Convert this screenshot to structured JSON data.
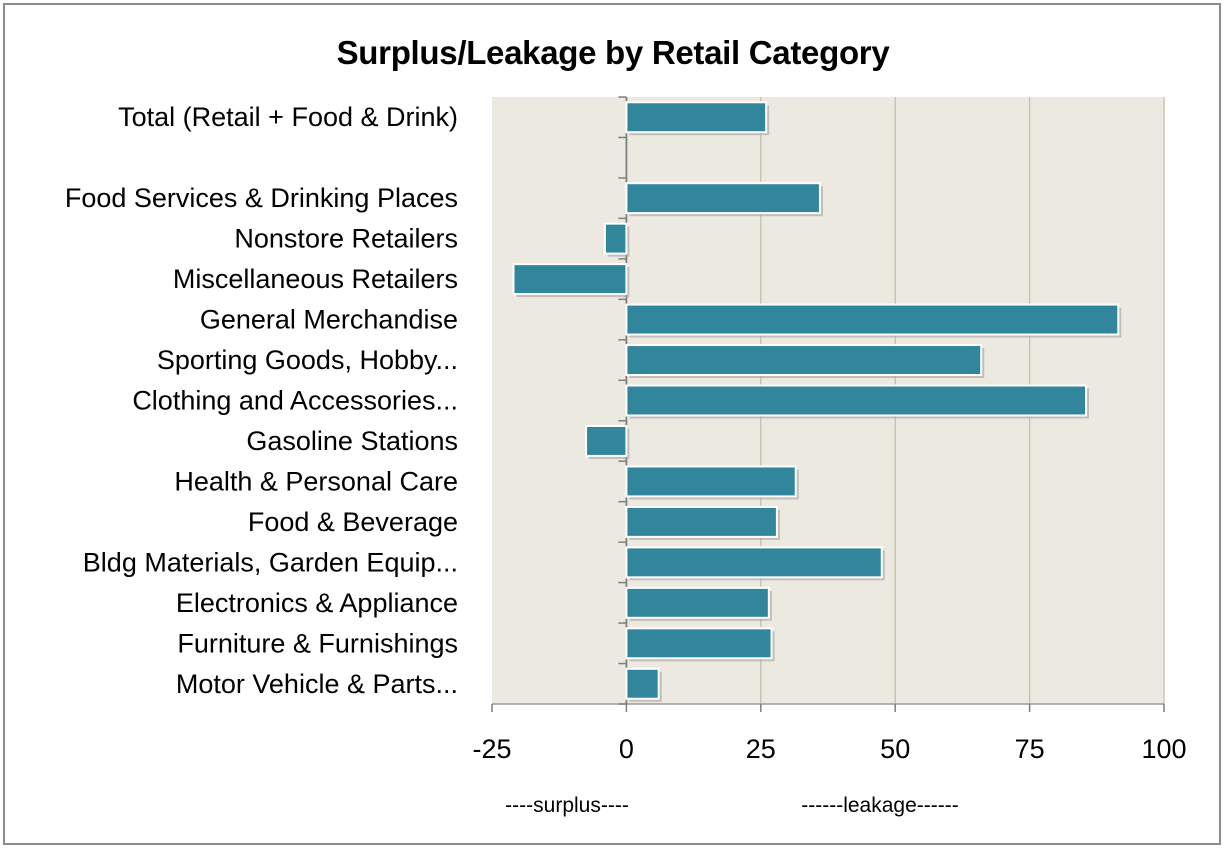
{
  "chart_data": {
    "type": "bar",
    "orientation": "horizontal",
    "title": "Surplus/Leakage by Retail Category",
    "categories": [
      "Total (Retail + Food & Drink)",
      "",
      "Food Services & Drinking Places",
      "Nonstore Retailers",
      "Miscellaneous Retailers",
      "General Merchandise",
      "Sporting Goods, Hobby...",
      "Clothing and Accessories...",
      "Gasoline Stations",
      "Health & Personal Care",
      "Food & Beverage",
      "Bldg Materials, Garden Equip...",
      "Electronics & Appliance",
      "Furniture &  Furnishings",
      "Motor Vehicle & Parts..."
    ],
    "values": [
      26,
      null,
      36,
      -4,
      -21,
      91.5,
      66,
      85.5,
      -7.5,
      31.5,
      28,
      47.5,
      26.5,
      27,
      6
    ],
    "xlim": [
      -25,
      100
    ],
    "xticks": [
      "-25",
      "0",
      "25",
      "50",
      "75",
      "100"
    ],
    "xtick_values": [
      -25,
      0,
      25,
      50,
      75,
      100
    ],
    "xlabel_left": "----surplus----",
    "xlabel_right": "------leakage------",
    "grid": "vertical",
    "bar_color": "#31869b",
    "plot_background": "#ece9e0",
    "gridline_color": "#c9c5b4"
  }
}
